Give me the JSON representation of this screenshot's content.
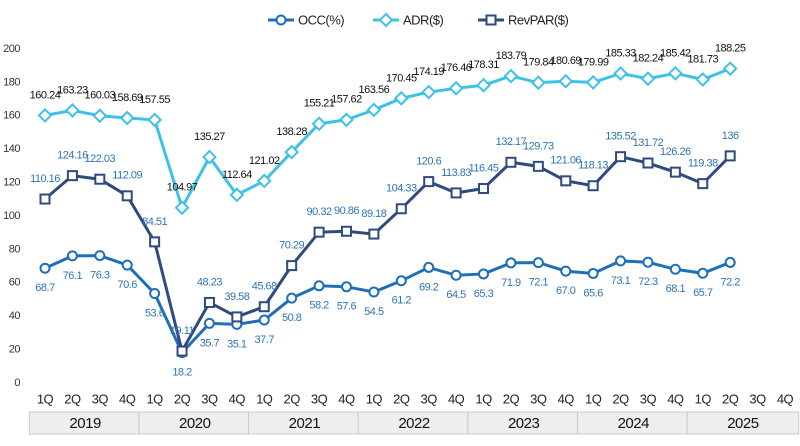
{
  "chart_data": {
    "type": "line",
    "categories": [
      "1Q",
      "2Q",
      "3Q",
      "4Q",
      "1Q",
      "2Q",
      "3Q",
      "4Q",
      "1Q",
      "2Q",
      "3Q",
      "4Q",
      "1Q",
      "2Q",
      "3Q",
      "4Q",
      "1Q",
      "2Q",
      "3Q",
      "4Q",
      "1Q",
      "2Q",
      "3Q",
      "4Q",
      "1Q",
      "2Q",
      "3Q",
      "4Q"
    ],
    "x_groups": [
      "2019",
      "2020",
      "2021",
      "2022",
      "2023",
      "2024",
      "2025"
    ],
    "ylim": [
      0,
      200
    ],
    "yticks": [
      0,
      20,
      40,
      60,
      80,
      100,
      120,
      140,
      160,
      180,
      200
    ],
    "legend": "top",
    "series": [
      {
        "name": "OCC(%)",
        "color": "#1f6fb8",
        "marker": "circle",
        "values": [
          68.7,
          76.1,
          76.3,
          70.6,
          53.6,
          18.2,
          35.7,
          35.1,
          37.7,
          50.8,
          58.2,
          57.6,
          54.5,
          61.2,
          69.2,
          64.5,
          65.3,
          71.9,
          72.1,
          67.0,
          65.6,
          73.1,
          72.3,
          68.1,
          65.7,
          72.2,
          null,
          null
        ],
        "value_labels": [
          "68.7",
          "76.1",
          "76.3",
          "70.6",
          "53.6",
          "18.2",
          "35.7",
          "35.1",
          "37.7",
          "50.8",
          "58.2",
          "57.6",
          "54.5",
          "61.2",
          "69.2",
          "64.5",
          "65.3",
          "71.9",
          "72.1",
          "67.0",
          "65.6",
          "73.1",
          "72.3",
          "68.1",
          "65.7",
          "72.2",
          null,
          null
        ]
      },
      {
        "name": "ADR($)",
        "color": "#3ec1e6",
        "marker": "diamond",
        "values": [
          160.24,
          163.23,
          160.03,
          158.69,
          157.55,
          104.97,
          135.27,
          112.64,
          121.02,
          138.28,
          155.21,
          157.62,
          163.56,
          170.45,
          174.19,
          176.46,
          178.31,
          183.79,
          179.84,
          180.69,
          179.99,
          185.33,
          182.24,
          185.42,
          181.73,
          188.25,
          null,
          null
        ]
      },
      {
        "name": "RevPAR($)",
        "color": "#2f4a7f",
        "marker": "square",
        "values": [
          110.16,
          124.16,
          122.03,
          112.09,
          84.51,
          19.11,
          48.23,
          39.58,
          45.68,
          70.29,
          90.32,
          90.86,
          89.18,
          104.33,
          120.6,
          113.83,
          116.45,
          132.17,
          129.73,
          121.06,
          118.13,
          135.52,
          131.72,
          126.26,
          119.38,
          136,
          null,
          null
        ]
      }
    ]
  }
}
